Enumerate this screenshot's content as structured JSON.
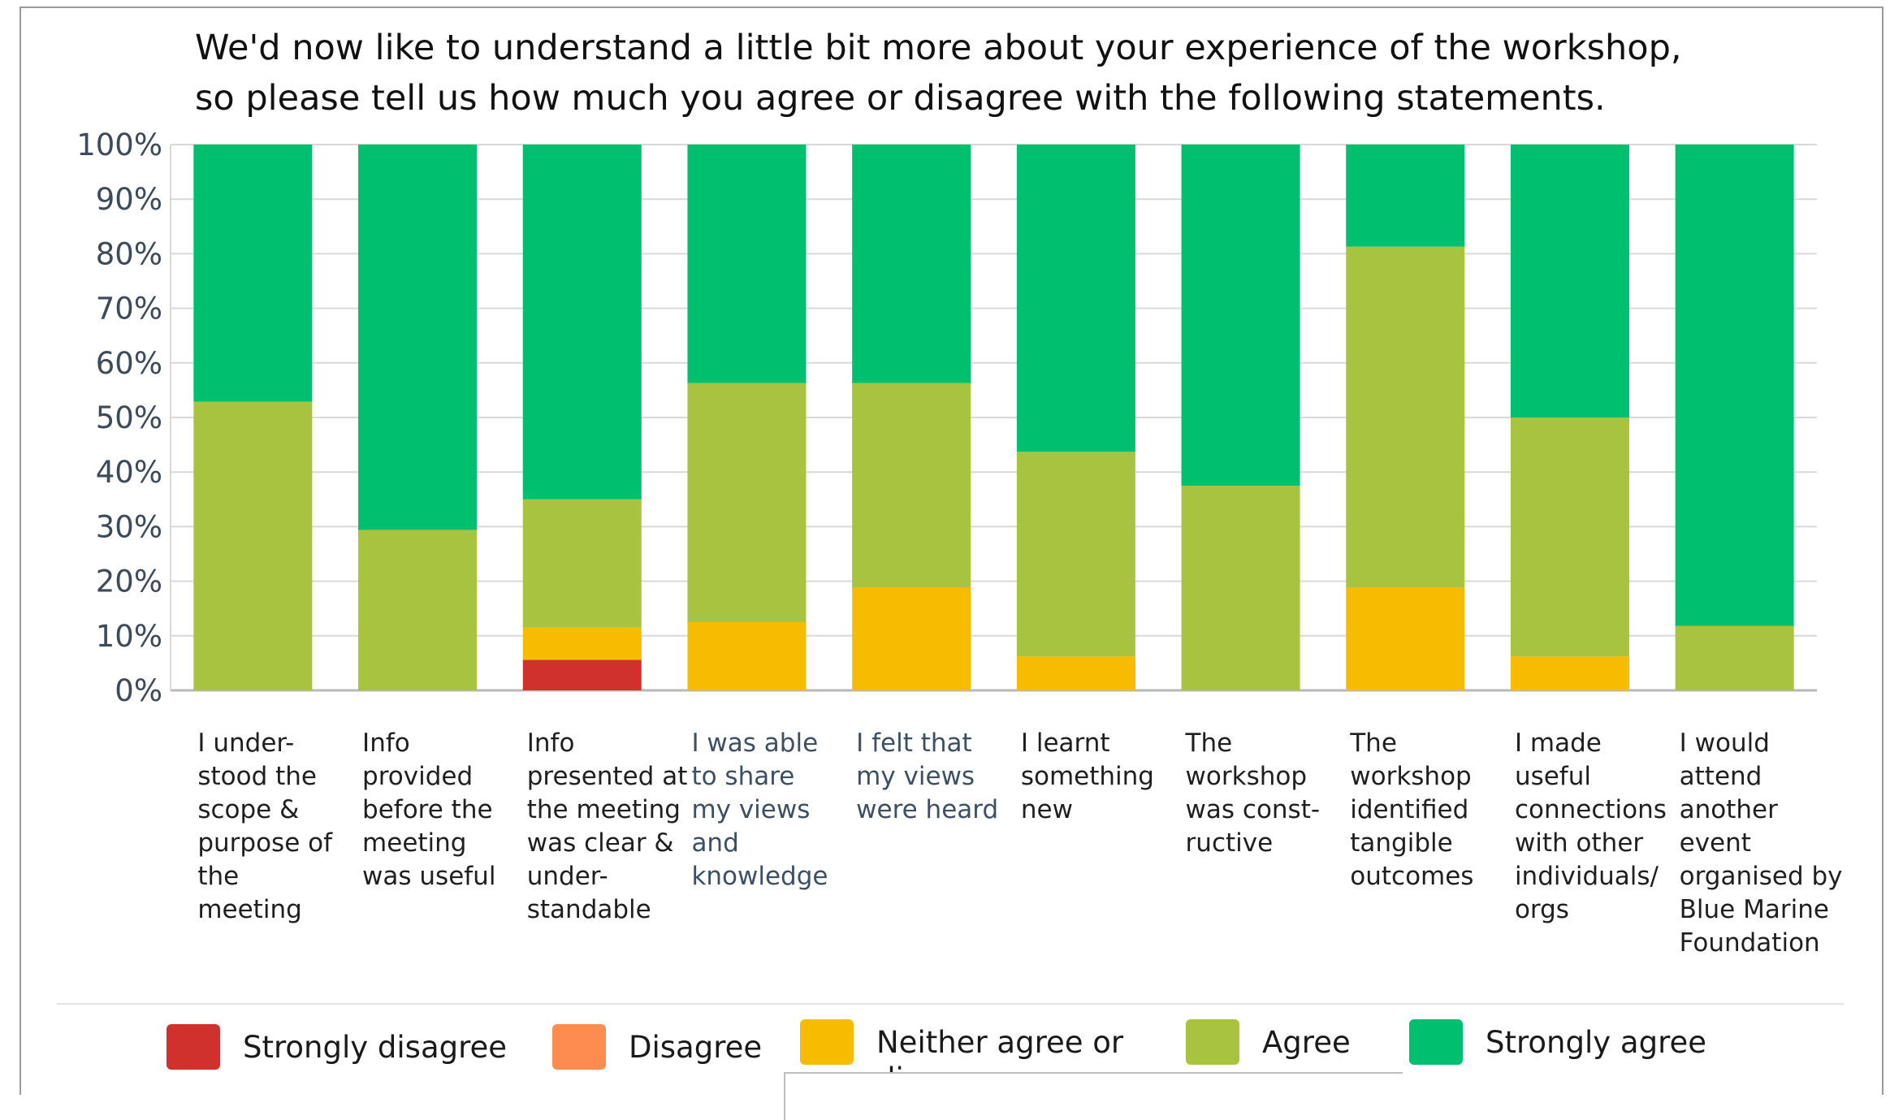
{
  "title_lines": [
    "We'd now like to understand a little bit more about your experience of the workshop,",
    "so please tell us how much you agree or disagree with the following statements."
  ],
  "colors": {
    "strongly_disagree": "#d0312d",
    "disagree": "#ff8c4f",
    "neither": "#f7bc00",
    "agree": "#a8c340",
    "strongly_agree": "#00bf6f"
  },
  "chart_data": {
    "type": "bar",
    "stacked": true,
    "ylim": [
      0,
      100
    ],
    "yticks": [
      "0%",
      "10%",
      "20%",
      "30%",
      "40%",
      "50%",
      "60%",
      "70%",
      "80%",
      "90%",
      "100%"
    ],
    "grid": true,
    "legend_position": "bottom",
    "categories": [
      "I under-\nstood the\nscope &\npurpose of\nthe\nmeeting",
      "Info\nprovided\nbefore the\nmeeting\nwas useful",
      "Info\npresented at\nthe meeting\nwas clear &\nunder-\nstandable",
      "I was able\nto share\nmy views\nand\nknowledge",
      "I felt that\nmy views\nwere heard",
      "I learnt\nsomething\nnew",
      "The\nworkshop\nwas const-\nructive",
      "The\nworkshop\nidentified\ntangible\noutcomes",
      "I made useful\nconnections\nwith other\nindividuals/\norgs",
      "I would attend\nanother event\norganised by\nBlue Marine\nFoundation"
    ],
    "series": [
      {
        "name": "Strongly disagree",
        "values": [
          0,
          0,
          5.6,
          0,
          0,
          0,
          0,
          0,
          0,
          0
        ]
      },
      {
        "name": "Disagree",
        "values": [
          0,
          0,
          0,
          0,
          0,
          0,
          0,
          0,
          0,
          0
        ]
      },
      {
        "name": "Neither agree or disagree",
        "values": [
          0,
          0,
          5.9,
          12.5,
          18.8,
          6.2,
          0,
          18.8,
          6.2,
          0
        ]
      },
      {
        "name": "Agree",
        "values": [
          52.9,
          29.4,
          23.5,
          43.8,
          37.5,
          37.5,
          37.5,
          62.5,
          43.8,
          11.8
        ]
      },
      {
        "name": "Strongly agree",
        "values": [
          47.1,
          70.6,
          65.0,
          43.7,
          43.7,
          56.3,
          62.5,
          18.7,
          50.0,
          88.2
        ]
      }
    ]
  }
}
